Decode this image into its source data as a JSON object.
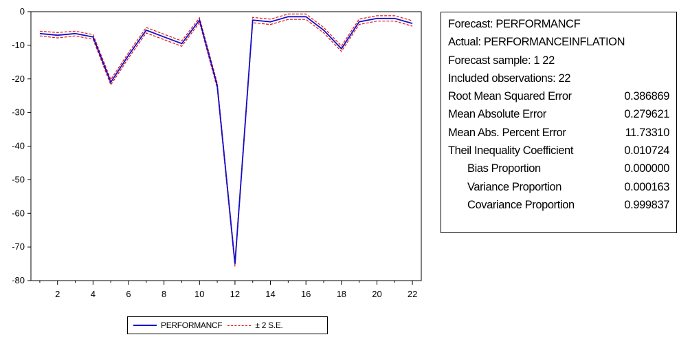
{
  "chart_data": {
    "type": "line",
    "x": [
      1,
      2,
      3,
      4,
      5,
      6,
      7,
      8,
      9,
      10,
      11,
      12,
      13,
      14,
      15,
      16,
      17,
      18,
      19,
      20,
      21,
      22
    ],
    "series": [
      {
        "name": "PERFORMANCF",
        "color": "#1010cc",
        "style": "solid",
        "values": [
          -6.5,
          -7,
          -6.5,
          -7.5,
          -21,
          -13,
          -5.5,
          -7.5,
          -9.5,
          -2.5,
          -22,
          -75,
          -2.5,
          -3,
          -1.5,
          -1.5,
          -5.5,
          -11,
          -3,
          -2,
          -2,
          -3.5
        ]
      },
      {
        "name": "± 2 S.E.",
        "color": "#e81010",
        "style": "dashed",
        "values": [
          -5.8,
          -6.2,
          -5.8,
          -6.8,
          -20.2,
          -12.2,
          -4.7,
          -6.7,
          -8.7,
          -1.8,
          -21.2,
          -74.2,
          -1.7,
          -2.2,
          -0.7,
          -0.7,
          -4.7,
          -10.2,
          -2.2,
          -1.2,
          -1.2,
          -2.7
        ]
      },
      {
        "name": "",
        "color": "#e81010",
        "style": "dashed",
        "values": [
          -7.2,
          -7.8,
          -7.2,
          -8.2,
          -21.8,
          -13.8,
          -6.3,
          -8.3,
          -10.3,
          -3.2,
          -22.8,
          -75.8,
          -3.3,
          -3.8,
          -2.3,
          -2.3,
          -6.3,
          -11.8,
          -3.8,
          -2.8,
          -2.8,
          -4.3
        ]
      }
    ],
    "xticks": [
      2,
      4,
      6,
      8,
      10,
      12,
      14,
      16,
      18,
      20,
      22
    ],
    "yticks": [
      0,
      -10,
      -20,
      -30,
      -40,
      -50,
      -60,
      -70,
      -80
    ],
    "xlim": [
      0.5,
      22.5
    ],
    "ylim": [
      -80,
      0
    ],
    "grid": false,
    "legend": "bottom"
  },
  "legend": {
    "series1": "PERFORMANCF",
    "series2": "± 2 S.E."
  },
  "stats": {
    "forecast": "Forecast: PERFORMANCF",
    "actual": "Actual: PERFORMANCEINFLATION",
    "sample": "Forecast sample: 1 22",
    "observations": "Included observations: 22",
    "rows": [
      {
        "label": "Root Mean Squared Error",
        "value": "0.386869"
      },
      {
        "label": "Mean Absolute Error",
        "value": "0.279621"
      },
      {
        "label": "Mean Abs. Percent Error",
        "value": "11.73310"
      },
      {
        "label": "Theil Inequality Coefficient",
        "value": "0.010724"
      },
      {
        "label": "Bias Proportion",
        "value": "0.000000"
      },
      {
        "label": "Variance Proportion",
        "value": "0.000163"
      },
      {
        "label": "Covariance Proportion",
        "value": "0.999837"
      }
    ]
  }
}
